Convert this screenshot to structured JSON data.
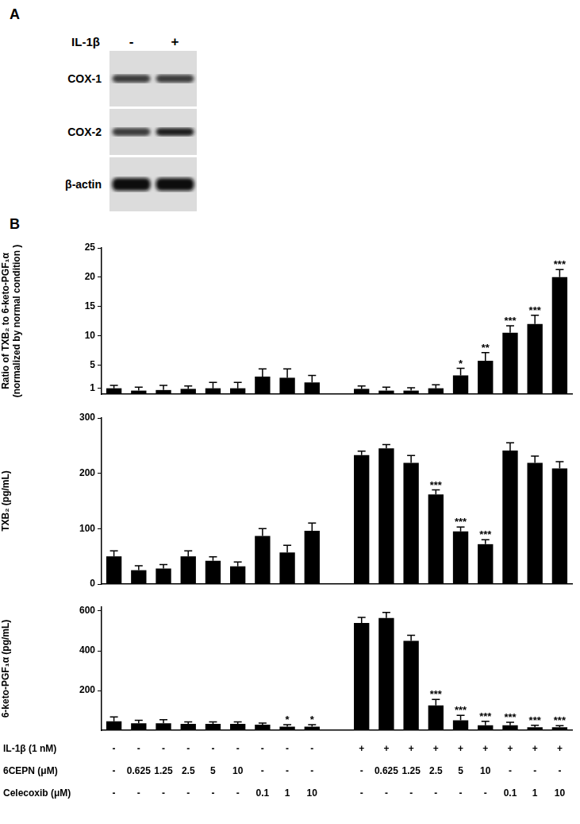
{
  "panel_a": {
    "label": "A",
    "treatment": "IL-1β",
    "lanes": [
      "-",
      "+"
    ],
    "bands": [
      "COX-1",
      "COX-2",
      "β-actin"
    ]
  },
  "panel_b": {
    "label": "B"
  },
  "chart_data": [
    {
      "type": "bar",
      "y_label": [
        "Ratio of TXB₂ to 6-keto-PGF₁α",
        "(normalized by normal condition )"
      ],
      "categories": [
        [
          "-",
          "-",
          "-"
        ],
        [
          "-",
          "0.625",
          "-"
        ],
        [
          "-",
          "1.25",
          "-"
        ],
        [
          "-",
          "2.5",
          "-"
        ],
        [
          "-",
          "5",
          "-"
        ],
        [
          "-",
          "10",
          "-"
        ],
        [
          "-",
          "-",
          "0.1"
        ],
        [
          "-",
          "-",
          "1"
        ],
        [
          "-",
          "-",
          "10"
        ],
        null,
        [
          "+",
          "-",
          "-"
        ],
        [
          "+",
          "0.625",
          "-"
        ],
        [
          "+",
          "1.25",
          "-"
        ],
        [
          "+",
          "2.5",
          "-"
        ],
        [
          "+",
          "5",
          "-"
        ],
        [
          "+",
          "10",
          "-"
        ],
        [
          "+",
          "-",
          "0.1"
        ],
        [
          "+",
          "-",
          "1"
        ],
        [
          "+",
          "-",
          "10"
        ]
      ],
      "values": [
        1.0,
        0.6,
        0.7,
        0.9,
        1.0,
        1.0,
        3.0,
        2.8,
        2.0,
        null,
        0.9,
        0.6,
        0.6,
        1.0,
        3.2,
        5.7,
        10.5,
        12.0,
        20.0
      ],
      "errors": [
        0.5,
        0.6,
        0.8,
        0.5,
        1.0,
        1.0,
        1.3,
        1.5,
        1.2,
        null,
        0.5,
        0.6,
        0.5,
        0.6,
        1.2,
        1.4,
        1.2,
        1.5,
        1.3
      ],
      "significance": [
        null,
        null,
        null,
        null,
        null,
        null,
        null,
        null,
        null,
        null,
        null,
        null,
        null,
        null,
        "*",
        "**",
        "***",
        "***",
        "***"
      ],
      "color": "#000000",
      "ylim": [
        0,
        25
      ],
      "yticks": [
        1,
        5,
        10,
        15,
        20,
        25
      ],
      "grid": false,
      "tick_labels": "y"
    },
    {
      "type": "bar",
      "y_label": [
        "TXB₂ (pg/mL)"
      ],
      "categories": [
        [
          "-",
          "-",
          "-"
        ],
        [
          "-",
          "0.625",
          "-"
        ],
        [
          "-",
          "1.25",
          "-"
        ],
        [
          "-",
          "2.5",
          "-"
        ],
        [
          "-",
          "5",
          "-"
        ],
        [
          "-",
          "10",
          "-"
        ],
        [
          "-",
          "-",
          "0.1"
        ],
        [
          "-",
          "-",
          "1"
        ],
        [
          "-",
          "-",
          "10"
        ],
        null,
        [
          "+",
          "-",
          "-"
        ],
        [
          "+",
          "0.625",
          "-"
        ],
        [
          "+",
          "1.25",
          "-"
        ],
        [
          "+",
          "2.5",
          "-"
        ],
        [
          "+",
          "5",
          "-"
        ],
        [
          "+",
          "10",
          "-"
        ],
        [
          "+",
          "-",
          "0.1"
        ],
        [
          "+",
          "-",
          "1"
        ],
        [
          "+",
          "-",
          "10"
        ]
      ],
      "values": [
        50,
        25,
        28,
        50,
        42,
        32,
        87,
        57,
        96,
        null,
        233,
        245,
        219,
        162,
        95,
        72,
        241,
        219,
        209
      ],
      "errors": [
        10,
        8,
        7,
        10,
        7,
        8,
        13,
        13,
        14,
        null,
        7,
        7,
        13,
        8,
        8,
        8,
        14,
        12,
        12
      ],
      "significance": [
        null,
        null,
        null,
        null,
        null,
        null,
        null,
        null,
        null,
        null,
        null,
        null,
        null,
        "***",
        "***",
        "***",
        null,
        null,
        null
      ],
      "color": "#000000",
      "ylim": [
        0,
        300
      ],
      "yticks": [
        0,
        100,
        200,
        300
      ],
      "grid": false,
      "tick_labels": "y"
    },
    {
      "type": "bar",
      "y_label": [
        "6-keto-PGF₁α (pg/mL)"
      ],
      "category_rows": [
        "IL-1β (1 nM)",
        "6CEPN (μM)",
        "Celecoxib (μM)"
      ],
      "categories": [
        [
          "-",
          "-",
          "-"
        ],
        [
          "-",
          "0.625",
          "-"
        ],
        [
          "-",
          "1.25",
          "-"
        ],
        [
          "-",
          "2.5",
          "-"
        ],
        [
          "-",
          "5",
          "-"
        ],
        [
          "-",
          "10",
          "-"
        ],
        [
          "-",
          "-",
          "0.1"
        ],
        [
          "-",
          "-",
          "1"
        ],
        [
          "-",
          "-",
          "10"
        ],
        null,
        [
          "+",
          "-",
          "-"
        ],
        [
          "+",
          "0.625",
          "-"
        ],
        [
          "+",
          "1.25",
          "-"
        ],
        [
          "+",
          "2.5",
          "-"
        ],
        [
          "+",
          "5",
          "-"
        ],
        [
          "+",
          "10",
          "-"
        ],
        [
          "+",
          "-",
          "0.1"
        ],
        [
          "+",
          "-",
          "1"
        ],
        [
          "+",
          "-",
          "10"
        ]
      ],
      "values": [
        45,
        35,
        35,
        32,
        32,
        32,
        28,
        18,
        18,
        null,
        540,
        565,
        450,
        125,
        50,
        25,
        25,
        15,
        15
      ],
      "errors": [
        22,
        15,
        18,
        10,
        10,
        10,
        8,
        10,
        10,
        null,
        28,
        28,
        28,
        30,
        25,
        20,
        15,
        10,
        8
      ],
      "significance": [
        null,
        null,
        null,
        null,
        null,
        null,
        null,
        "*",
        "*",
        null,
        null,
        null,
        null,
        "***",
        "***",
        "***",
        "***",
        "***",
        "***"
      ],
      "color": "#000000",
      "ylim": [
        0,
        620
      ],
      "yticks": [
        200,
        400,
        600
      ],
      "grid": false
    }
  ]
}
